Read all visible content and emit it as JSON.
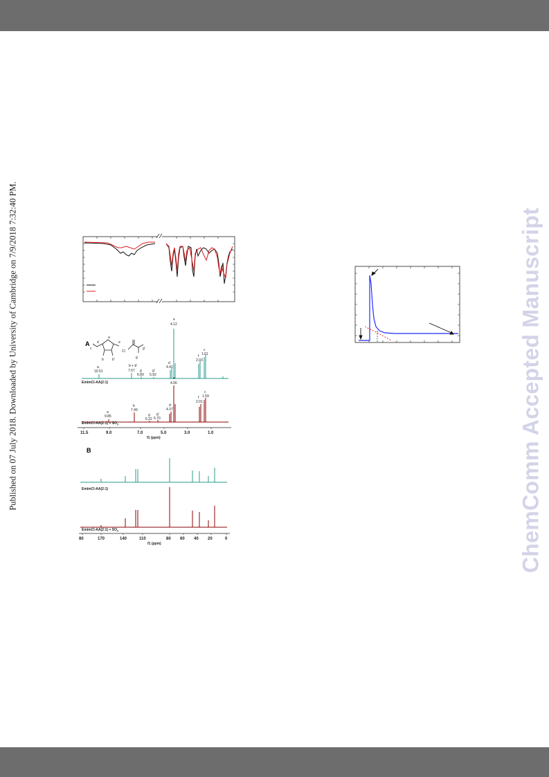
{
  "header": {
    "bar_color": "#6d6d6d"
  },
  "footer": {
    "bar_color": "#6d6d6d"
  },
  "side_note": "Published on 07 July 2018. Downloaded by University of Cambridge on 7/9/2018 7:32:40 PM.",
  "watermark": "ChemComm Accepted Manuscript",
  "colors": {
    "teal": "#2a9a8c",
    "darkred": "#8b0000",
    "red": "#e0191b",
    "blue": "#1f2bff"
  },
  "nmr_1h": {
    "panel_label": "A",
    "axis_label": "f1 (ppm)",
    "ticks": [
      "11.5",
      "9.0",
      "7.0",
      "5.0",
      "3.0",
      "1.0"
    ],
    "top_trace_label": "EmimCl-AA(2:1)",
    "bottom_trace_label": "EmimCl-AA(2:1) + SO",
    "bottom_trace_sub": "2",
    "top_peaks": [
      {
        "letter": "a",
        "value": "10.51"
      },
      {
        "letter": "b + b'",
        "value": "7.67"
      },
      {
        "letter": "g",
        "value": "6.89"
      },
      {
        "letter": "g'",
        "value": "5.92"
      },
      {
        "letter": "d",
        "value": "4.42"
      },
      {
        "letter": "e",
        "value": "4.12"
      },
      {
        "letter": "f",
        "value": "2.03"
      },
      {
        "letter": "c",
        "value": "1.61"
      }
    ],
    "bottom_peaks": [
      {
        "letter": "a",
        "value": "9.85"
      },
      {
        "letter": "b",
        "value": "7.49"
      },
      {
        "letter": "g",
        "value": "6.22"
      },
      {
        "letter": "g'",
        "value": "5.70"
      },
      {
        "letter": "d",
        "value": "4.37"
      },
      {
        "letter": "e",
        "value": "4.06"
      },
      {
        "letter": "f",
        "value": "2.01"
      },
      {
        "letter": "c",
        "value": "1.59"
      }
    ],
    "structure_labels": [
      "a",
      "b",
      "b'",
      "c",
      "d",
      "e",
      "Cl",
      "f",
      "g",
      "g'"
    ]
  },
  "nmr_13c": {
    "panel_label": "B",
    "axis_label": "f1 (ppm)",
    "ticks": [
      "80",
      "170",
      "140",
      "110",
      "80",
      "60",
      "40",
      "20",
      "0"
    ],
    "top_trace_label": "EmimCl-AA(2:1)",
    "bottom_trace_label": "EmimCl-AA(2:1) + SO",
    "bottom_trace_sub": "2"
  }
}
